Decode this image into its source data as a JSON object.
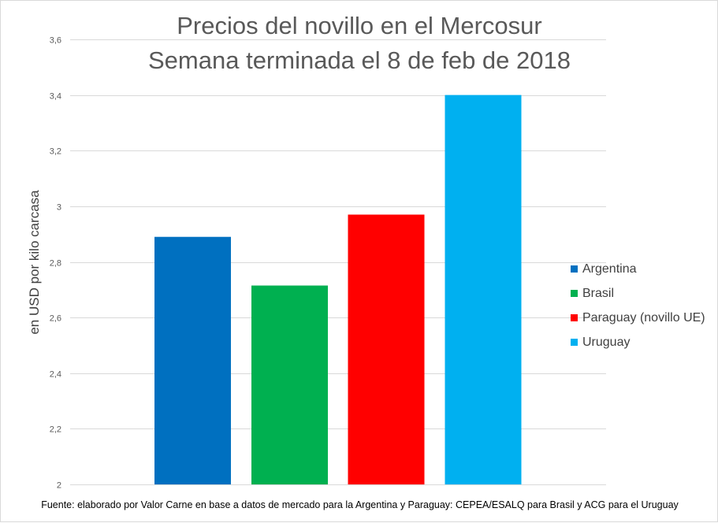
{
  "chart_data": {
    "type": "bar",
    "title": "Precios del novillo en el Mercosur",
    "subtitle": "Semana terminada el 8 de feb de 2018",
    "xlabel": "",
    "ylabel": "en USD por kilo carcasa",
    "ylim": [
      2,
      3.6
    ],
    "yticks": [
      2,
      2.2,
      2.4,
      2.6,
      2.8,
      3,
      3.2,
      3.4,
      3.6
    ],
    "ytick_labels": [
      "2",
      "2,2",
      "2,4",
      "2,6",
      "2,8",
      "3",
      "3,2",
      "3,4",
      "3,6"
    ],
    "grid": true,
    "legend_position": "right",
    "categories": [
      "Argentina",
      "Brasil",
      "Paraguay (novillo UE)",
      "Uruguay"
    ],
    "values": [
      2.89,
      2.715,
      2.97,
      3.4
    ],
    "colors": [
      "#0070c0",
      "#00b050",
      "#ff0000",
      "#00b0f0"
    ],
    "source": "Fuente: elaborado por Valor Carne en base a datos de mercado para la Argentina y Paraguay: CEPEA/ESALQ para Brasil y ACG para el Uruguay"
  }
}
